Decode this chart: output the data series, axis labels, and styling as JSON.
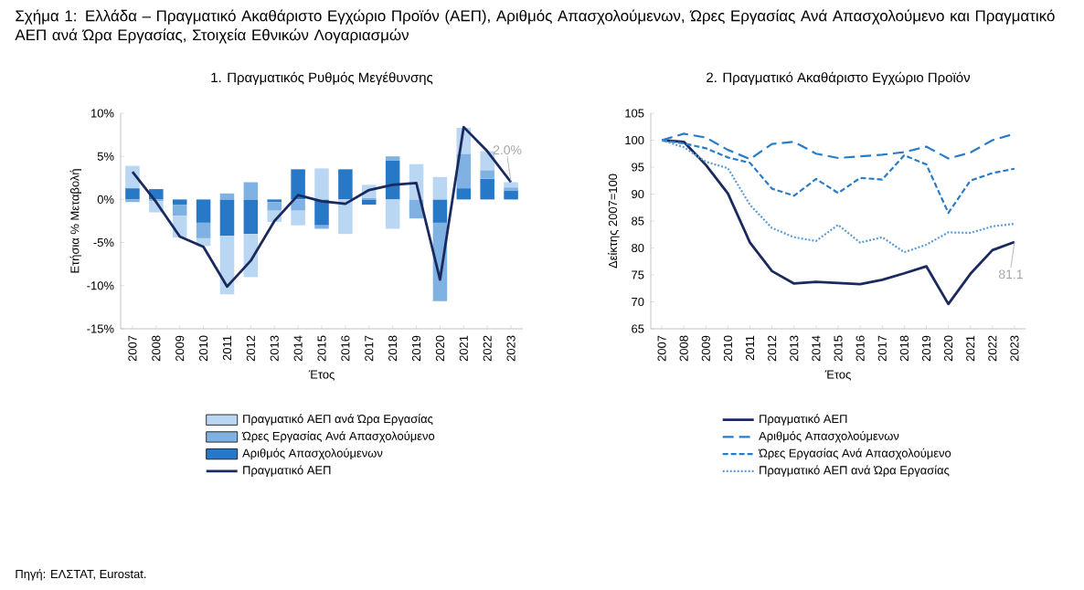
{
  "chart_data": [
    {
      "type": "bar",
      "title": "Σχήμα 1: Ελλάδα – Πραγματικό Ακαθάριστο Εγχώριο Προϊόν (ΑΕΠ), Αριθμός Απασχολούμενων, Ώρες Εργασίας Ανά Απασχολούμενο και Πραγματικό ΑΕΠ ανά Ώρα Εργασίας, Στοιχεία Εθνικών Λογαριασμών",
      "subtitle": "1. Πραγματικός Ρυθμός Μεγέθυνσης",
      "xlabel": "Έτος",
      "ylabel": "Ετήσια % Μεταβολή",
      "categories": [
        "2007",
        "2008",
        "2009",
        "2010",
        "2011",
        "2012",
        "2013",
        "2014",
        "2015",
        "2016",
        "2017",
        "2018",
        "2019",
        "2020",
        "2021",
        "2022",
        "2023"
      ],
      "stacked": true,
      "legend": "bottom",
      "ylim": [
        -15,
        10
      ],
      "yticks": [
        {
          "value": -15,
          "label": "-15%"
        },
        {
          "value": -10,
          "label": "-10%"
        },
        {
          "value": -5,
          "label": "-5%"
        },
        {
          "value": 0,
          "label": "0%"
        },
        {
          "value": 5,
          "label": "5%"
        },
        {
          "value": 10,
          "label": "10%"
        }
      ],
      "series": [
        {
          "name": "Αριθμός Απασχολούμενων",
          "type": "bar",
          "color": "#2878c8",
          "values": [
            1.3,
            1.2,
            -0.6,
            -2.7,
            -4.2,
            -4.0,
            -0.3,
            3.5,
            -3.0,
            3.5,
            -0.6,
            4.5,
            0,
            -2.7,
            1.3,
            2.4,
            1.0
          ]
        },
        {
          "name": "Ώρες Εργασίας Ανά Απασχολούμενο",
          "type": "bar",
          "color": "#7fb2e3",
          "values": [
            -0.3,
            -0.2,
            -1.3,
            -1.8,
            0.7,
            2.0,
            -1.0,
            -1.3,
            -0.4,
            0,
            0.2,
            0.5,
            -2.2,
            -9.1,
            4.0,
            1.0,
            0.4
          ]
        },
        {
          "name": "Πραγματικό ΑΕΠ ανά Ώρα Εργασίας",
          "type": "bar",
          "color": "#b9d6f2",
          "values": [
            2.6,
            -1.3,
            -2.5,
            -0.9,
            -6.8,
            -5.0,
            -1.3,
            -1.7,
            3.6,
            -4.0,
            1.5,
            -3.4,
            4.1,
            2.6,
            3.0,
            2.2,
            0.6
          ]
        },
        {
          "name": "Πραγματικό ΑΕΠ",
          "type": "line",
          "color": "#1b2a5e",
          "line_style": "solid",
          "values": [
            3.2,
            -0.3,
            -4.3,
            -5.5,
            -10.1,
            -7.1,
            -2.5,
            0.5,
            -0.2,
            -0.5,
            1.1,
            1.7,
            1.9,
            -9.3,
            8.4,
            5.6,
            2.0
          ]
        }
      ],
      "annotations": [
        {
          "text": "2.0%",
          "x": "2023",
          "y": 2.0
        },
        "Πηγή: ΕΛΣΤΑΤ, Eurostat."
      ]
    },
    {
      "type": "line",
      "title": "2. Πραγματικό Ακαθάριστο Εγχώριο Προϊόν",
      "xlabel": "Έτος",
      "ylabel": "Δείκτης 2007=100",
      "categories": [
        "2007",
        "2008",
        "2009",
        "2010",
        "2011",
        "2012",
        "2013",
        "2014",
        "2015",
        "2016",
        "2017",
        "2018",
        "2019",
        "2020",
        "2021",
        "2022",
        "2023"
      ],
      "legend": "bottom",
      "ylim": [
        65,
        105
      ],
      "yticks": [
        65,
        70,
        75,
        80,
        85,
        90,
        95,
        100,
        105
      ],
      "series": [
        {
          "name": "Πραγματικό ΑΕΠ",
          "color": "#1b2a5e",
          "line_style": "solid",
          "values": [
            100,
            99.7,
            95.4,
            90.1,
            81,
            75.7,
            73.4,
            73.7,
            73.5,
            73.3,
            74.1,
            75.3,
            76.6,
            69.6,
            75.2,
            79.6,
            81.1
          ]
        },
        {
          "name": "Αριθμός Απασχολούμενων",
          "color": "#2b7cc6",
          "line_style": "dashed",
          "values": [
            100,
            101.2,
            100.5,
            98.2,
            96.5,
            99.3,
            99.7,
            97.5,
            96.7,
            97.0,
            97.3,
            97.8,
            98.8,
            96.6,
            97.7,
            100,
            101.2
          ]
        },
        {
          "name": "Ώρες Εργασίας Ανά Απασχολούμενο",
          "color": "#2b7cc6",
          "line_style": "dashed",
          "values": [
            100,
            99.4,
            98.5,
            96.8,
            95.8,
            91,
            89.7,
            92.8,
            90.2,
            93,
            92.7,
            97.2,
            95.5,
            86.5,
            92.5,
            93.9,
            94.7
          ]
        },
        {
          "name": "Πραγματικό ΑΕΠ ανά Ώρα Εργασίας",
          "color": "#5b9bd5",
          "line_style": "dotted",
          "values": [
            100,
            98.7,
            96,
            94.8,
            88,
            83.7,
            82,
            81.3,
            84.3,
            81,
            82,
            79.2,
            80.6,
            82.9,
            82.8,
            84,
            84.5
          ]
        }
      ],
      "annotations": [
        {
          "text": "81.1",
          "x": "2023",
          "y": 81.1
        }
      ]
    }
  ]
}
